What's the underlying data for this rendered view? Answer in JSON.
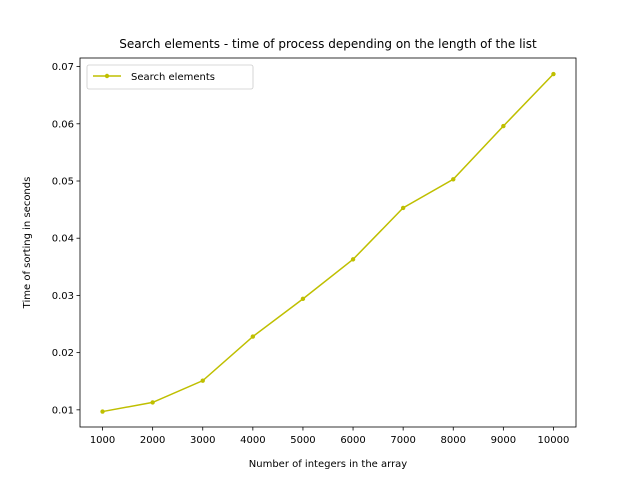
{
  "chart_data": {
    "type": "line",
    "title": "Search elements - time of process depending on the length of the list",
    "xlabel": "Number of integers in the array",
    "ylabel": "Time of sorting in seconds",
    "xlim": [
      550,
      10450
    ],
    "ylim": [
      0.007,
      0.0715
    ],
    "xticks": [
      1000,
      2000,
      3000,
      4000,
      5000,
      6000,
      7000,
      8000,
      9000,
      10000
    ],
    "yticks": [
      0.01,
      0.02,
      0.03,
      0.04,
      0.05,
      0.06,
      0.07
    ],
    "ytick_labels": [
      "0.01",
      "0.02",
      "0.03",
      "0.04",
      "0.05",
      "0.06",
      "0.07"
    ],
    "grid": false,
    "legend_position": "upper left",
    "series": [
      {
        "name": "Search elements",
        "color": "#bfbf00",
        "marker": "circle",
        "x": [
          1000,
          2000,
          3000,
          4000,
          5000,
          6000,
          7000,
          8000,
          9000,
          10000
        ],
        "y": [
          0.0097,
          0.0113,
          0.0151,
          0.0228,
          0.0294,
          0.0363,
          0.0453,
          0.0503,
          0.0596,
          0.0687
        ]
      }
    ]
  }
}
